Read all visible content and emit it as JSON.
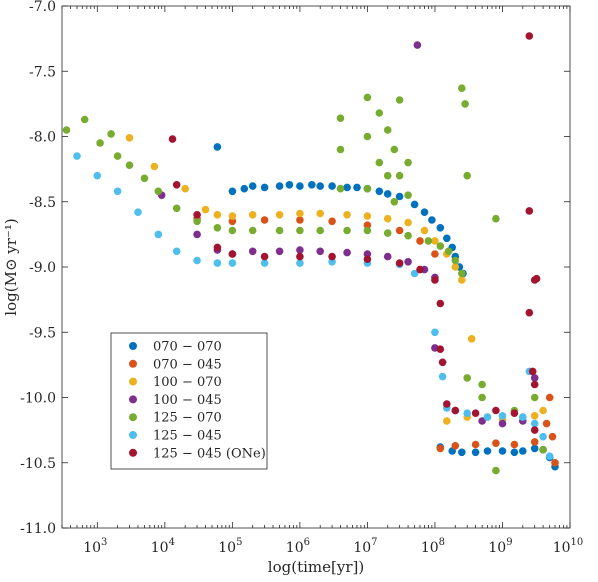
{
  "chart_data": {
    "type": "scatter",
    "title": "",
    "xlabel": "log(time[yr])",
    "ylabel": "log(M⊙ yr⁻¹)",
    "x_scale": "log",
    "xlim": [
      300,
      10000000000
    ],
    "ylim": [
      -11.0,
      -7.0
    ],
    "grid": false,
    "legend_position": "bottom-left",
    "x_ticks": [
      {
        "value": 1000,
        "base": "10",
        "exp": "3"
      },
      {
        "value": 10000,
        "base": "10",
        "exp": "4"
      },
      {
        "value": 100000,
        "base": "10",
        "exp": "5"
      },
      {
        "value": 1000000,
        "base": "10",
        "exp": "6"
      },
      {
        "value": 10000000,
        "base": "10",
        "exp": "7"
      },
      {
        "value": 100000000,
        "base": "10",
        "exp": "8"
      },
      {
        "value": 1000000000,
        "base": "10",
        "exp": "9"
      },
      {
        "value": 10000000000,
        "base": "10",
        "exp": "10"
      }
    ],
    "y_ticks": [
      {
        "value": -11.0,
        "label": "-11.0"
      },
      {
        "value": -10.5,
        "label": "-10.5"
      },
      {
        "value": -10.0,
        "label": "-10.0"
      },
      {
        "value": -9.5,
        "label": "-9.5"
      },
      {
        "value": -9.0,
        "label": "-9.0"
      },
      {
        "value": -8.5,
        "label": "-8.5"
      },
      {
        "value": -8.0,
        "label": "-8.0"
      },
      {
        "value": -7.5,
        "label": "-7.5"
      },
      {
        "value": -7.0,
        "label": "-7.0"
      }
    ],
    "series": [
      {
        "name": "070 − 070",
        "color": "#0072BD",
        "points": [
          [
            60000,
            -8.08
          ],
          [
            100000,
            -8.42
          ],
          [
            150000,
            -8.4
          ],
          [
            200000,
            -8.38
          ],
          [
            300000,
            -8.39
          ],
          [
            500000,
            -8.38
          ],
          [
            700000,
            -8.37
          ],
          [
            1000000,
            -8.38
          ],
          [
            1500000,
            -8.37
          ],
          [
            2000000,
            -8.38
          ],
          [
            3000000,
            -8.38
          ],
          [
            5000000,
            -8.39
          ],
          [
            7000000,
            -8.39
          ],
          [
            10000000,
            -8.4
          ],
          [
            15000000,
            -8.42
          ],
          [
            20000000,
            -8.44
          ],
          [
            30000000,
            -8.46
          ],
          [
            50000000,
            -8.52
          ],
          [
            70000000,
            -8.58
          ],
          [
            90000000,
            -8.64
          ],
          [
            120000000,
            -8.7
          ],
          [
            150000000,
            -8.78
          ],
          [
            180000000,
            -8.85
          ],
          [
            200000000,
            -8.92
          ],
          [
            230000000,
            -9.0
          ],
          [
            260000000,
            -9.05
          ],
          [
            120000000,
            -10.38
          ],
          [
            180000000,
            -10.41
          ],
          [
            250000000,
            -10.42
          ],
          [
            400000000,
            -10.42
          ],
          [
            600000000,
            -10.41
          ],
          [
            1000000000,
            -10.41
          ],
          [
            1500000000,
            -10.42
          ],
          [
            2000000000,
            -10.41
          ],
          [
            3000000000,
            -10.39
          ],
          [
            4000000000,
            -10.4
          ],
          [
            5000000000,
            -10.46
          ],
          [
            6000000000,
            -10.53
          ]
        ]
      },
      {
        "name": "070 − 045",
        "color": "#D95319",
        "points": [
          [
            30000,
            -8.63
          ],
          [
            100000,
            -8.65
          ],
          [
            300000,
            -8.64
          ],
          [
            1000000,
            -8.64
          ],
          [
            3000000,
            -8.65
          ],
          [
            10000000,
            -8.68
          ],
          [
            30000000,
            -8.72
          ],
          [
            60000000,
            -8.8
          ],
          [
            100000000,
            -8.9
          ],
          [
            120000000,
            -10.39
          ],
          [
            200000000,
            -10.37
          ],
          [
            400000000,
            -10.36
          ],
          [
            800000000,
            -10.35
          ],
          [
            1500000000,
            -10.36
          ],
          [
            3000000000,
            -10.34
          ],
          [
            4500000000,
            -10.2
          ],
          [
            5000000000,
            -10.0
          ],
          [
            5500000000,
            -10.3
          ],
          [
            6000000000,
            -10.5
          ]
        ]
      },
      {
        "name": "100 − 070",
        "color": "#EDB120",
        "points": [
          [
            3000,
            -8.01
          ],
          [
            7000,
            -8.23
          ],
          [
            20000,
            -8.4
          ],
          [
            40000,
            -8.56
          ],
          [
            60000,
            -8.6
          ],
          [
            100000,
            -8.61
          ],
          [
            200000,
            -8.6
          ],
          [
            500000,
            -8.6
          ],
          [
            1000000,
            -8.59
          ],
          [
            2000000,
            -8.59
          ],
          [
            5000000,
            -8.6
          ],
          [
            10000000,
            -8.61
          ],
          [
            20000000,
            -8.63
          ],
          [
            40000000,
            -8.66
          ],
          [
            70000000,
            -8.72
          ],
          [
            100000000,
            -8.8
          ],
          [
            150000000,
            -8.9
          ],
          [
            200000000,
            -9.0
          ],
          [
            250000000,
            -9.1
          ],
          [
            350000000,
            -9.55
          ],
          [
            150000000,
            -10.18
          ],
          [
            300000000,
            -10.15
          ],
          [
            600000000,
            -10.15
          ],
          [
            1000000000,
            -10.17
          ],
          [
            2000000000,
            -10.15
          ],
          [
            3000000000,
            -10.14
          ],
          [
            4000000000,
            -10.1
          ]
        ]
      },
      {
        "name": "100 − 045",
        "color": "#7E2F8E",
        "points": [
          [
            9000,
            -8.45
          ],
          [
            30000,
            -8.75
          ],
          [
            60000,
            -8.87
          ],
          [
            100000,
            -8.9
          ],
          [
            200000,
            -8.88
          ],
          [
            500000,
            -8.88
          ],
          [
            1000000,
            -8.87
          ],
          [
            2000000,
            -8.88
          ],
          [
            5000000,
            -8.89
          ],
          [
            10000000,
            -8.9
          ],
          [
            20000000,
            -8.92
          ],
          [
            40000000,
            -8.96
          ],
          [
            70000000,
            -9.02
          ],
          [
            100000000,
            -9.08
          ],
          [
            55000000,
            -7.3
          ],
          [
            100000000,
            -9.62
          ],
          [
            200000000,
            -10.1
          ],
          [
            500000000,
            -10.18
          ],
          [
            1000000000,
            -10.2
          ],
          [
            2000000000,
            -10.18
          ],
          [
            3000000000,
            -9.85
          ]
        ]
      },
      {
        "name": "125 − 070",
        "color": "#77AC30",
        "points": [
          [
            350,
            -7.95
          ],
          [
            650,
            -7.87
          ],
          [
            1100,
            -8.05
          ],
          [
            1600,
            -7.98
          ],
          [
            2000,
            -8.15
          ],
          [
            3000,
            -8.22
          ],
          [
            5000,
            -8.32
          ],
          [
            8000,
            -8.42
          ],
          [
            15000,
            -8.55
          ],
          [
            30000,
            -8.65
          ],
          [
            60000,
            -8.7
          ],
          [
            100000,
            -8.72
          ],
          [
            200000,
            -8.72
          ],
          [
            500000,
            -8.72
          ],
          [
            1000000,
            -8.72
          ],
          [
            2000000,
            -8.72
          ],
          [
            5000000,
            -8.72
          ],
          [
            10000000,
            -8.72
          ],
          [
            20000000,
            -8.74
          ],
          [
            40000000,
            -8.76
          ],
          [
            80000000,
            -8.8
          ],
          [
            120000000,
            -8.84
          ],
          [
            160000000,
            -8.88
          ],
          [
            200000000,
            -8.95
          ],
          [
            250000000,
            -9.05
          ],
          [
            4000000,
            -7.86
          ],
          [
            4000000,
            -8.1
          ],
          [
            4000000,
            -8.4
          ],
          [
            10000000,
            -7.7
          ],
          [
            10000000,
            -8.0
          ],
          [
            10000000,
            -8.4
          ],
          [
            15000000,
            -7.82
          ],
          [
            15000000,
            -8.2
          ],
          [
            20000000,
            -7.95
          ],
          [
            20000000,
            -8.3
          ],
          [
            25000000,
            -8.1
          ],
          [
            25000000,
            -8.5
          ],
          [
            30000000,
            -7.72
          ],
          [
            30000000,
            -8.3
          ],
          [
            40000000,
            -8.2
          ],
          [
            40000000,
            -8.45
          ],
          [
            250000000,
            -7.63
          ],
          [
            280000000,
            -7.75
          ],
          [
            300000000,
            -8.3
          ],
          [
            500000000,
            -10.0
          ],
          [
            300000000,
            -9.85
          ],
          [
            500000000,
            -9.9
          ],
          [
            800000000,
            -10.56
          ],
          [
            800000000,
            -8.63
          ],
          [
            1500000000,
            -10.1
          ],
          [
            3000000000,
            -10.0
          ],
          [
            4000000000,
            -10.4
          ]
        ]
      },
      {
        "name": "125 − 045",
        "color": "#4DBEEE",
        "points": [
          [
            500,
            -8.15
          ],
          [
            1000,
            -8.3
          ],
          [
            2000,
            -8.42
          ],
          [
            4000,
            -8.58
          ],
          [
            8000,
            -8.75
          ],
          [
            15000,
            -8.88
          ],
          [
            30000,
            -8.95
          ],
          [
            60000,
            -8.97
          ],
          [
            100000,
            -8.97
          ],
          [
            300000,
            -8.97
          ],
          [
            1000000,
            -8.97
          ],
          [
            3000000,
            -8.96
          ],
          [
            10000000,
            -8.97
          ],
          [
            30000000,
            -8.98
          ],
          [
            50000000,
            -9.05
          ],
          [
            100000000,
            -9.5
          ],
          [
            130000000,
            -9.84
          ],
          [
            150000000,
            -10.08
          ],
          [
            300000000,
            -10.12
          ],
          [
            600000000,
            -10.15
          ],
          [
            1000000000,
            -10.14
          ],
          [
            2000000000,
            -10.15
          ],
          [
            2500000000,
            -9.8
          ],
          [
            3000000000,
            -10.2
          ],
          [
            4000000000,
            -10.3
          ],
          [
            5000000000,
            -10.45
          ]
        ]
      },
      {
        "name": "125 − 045 (ONe)",
        "color": "#A2142F",
        "points": [
          [
            13000,
            -8.02
          ],
          [
            15000,
            -8.37
          ],
          [
            30000,
            -8.6
          ],
          [
            60000,
            -8.85
          ],
          [
            100000,
            -8.9
          ],
          [
            300000,
            -8.92
          ],
          [
            1000000,
            -8.92
          ],
          [
            3000000,
            -8.92
          ],
          [
            10000000,
            -8.94
          ],
          [
            30000000,
            -8.97
          ],
          [
            60000000,
            -9.02
          ],
          [
            100000000,
            -9.1
          ],
          [
            120000000,
            -9.28
          ],
          [
            120000000,
            -9.63
          ],
          [
            130000000,
            -9.73
          ],
          [
            150000000,
            -10.05
          ],
          [
            200000000,
            -10.1
          ],
          [
            400000000,
            -10.12
          ],
          [
            800000000,
            -10.1
          ],
          [
            1500000000,
            -10.12
          ],
          [
            2500000000,
            -7.23
          ],
          [
            2500000000,
            -8.57
          ],
          [
            2500000000,
            -9.35
          ],
          [
            3000000000,
            -9.1
          ],
          [
            3200000000,
            -9.09
          ],
          [
            3000000000,
            -9.9
          ],
          [
            2800000000,
            -9.8
          ],
          [
            3000000000,
            -10.25
          ]
        ]
      }
    ]
  }
}
